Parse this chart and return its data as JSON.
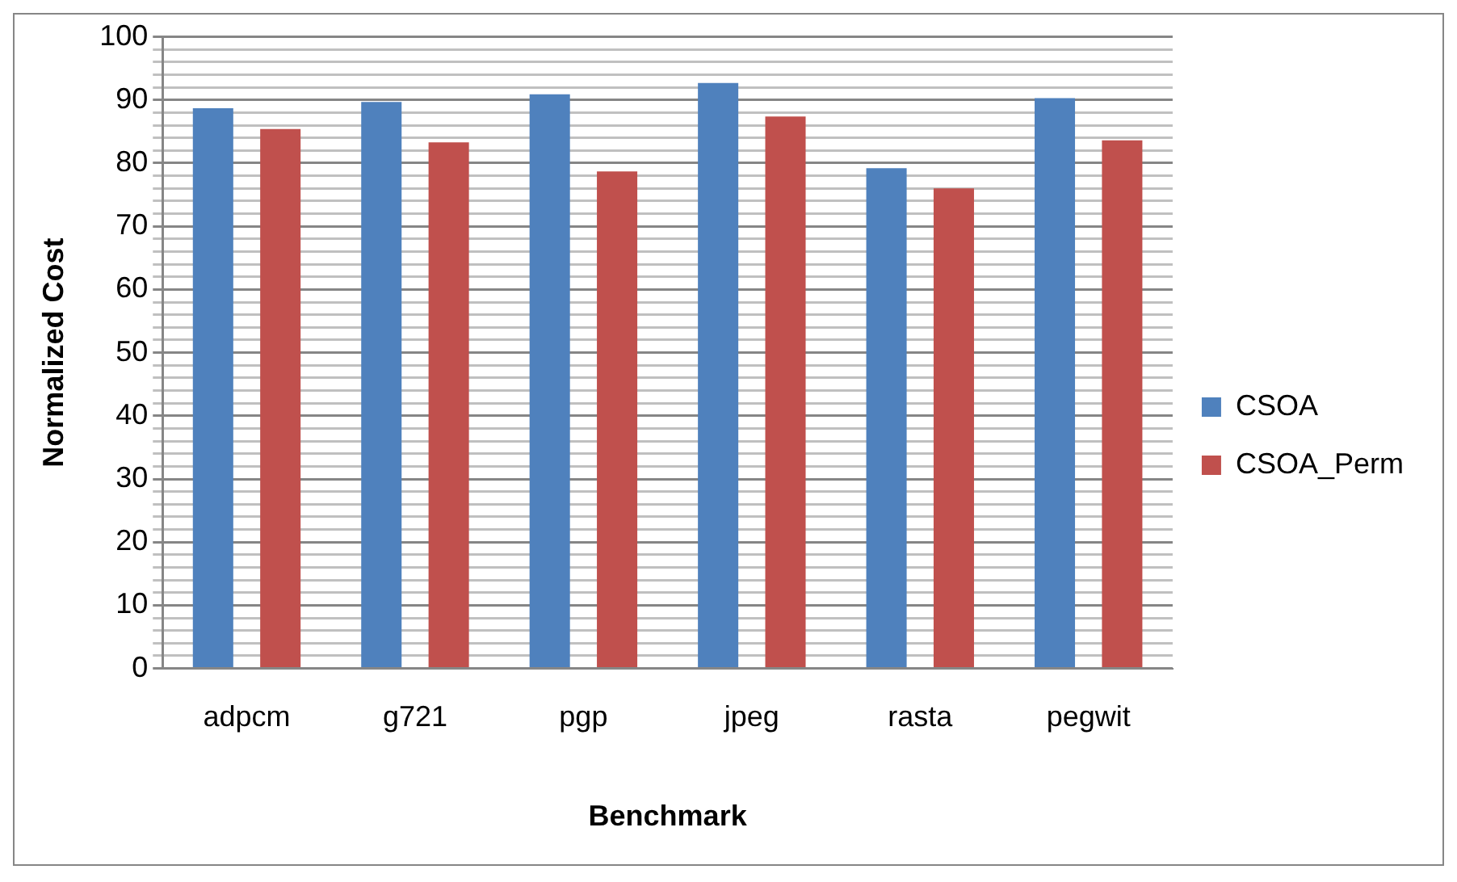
{
  "chart_data": {
    "type": "bar",
    "xlabel": "Benchmark",
    "ylabel": "Normalized Cost",
    "categories": [
      "adpcm",
      "g721",
      "pgp",
      "jpeg",
      "rasta",
      "pegwit"
    ],
    "series": [
      {
        "name": "CSOA",
        "color": "#4f81bd",
        "values": [
          88.7,
          89.7,
          90.9,
          92.7,
          79.2,
          90.3
        ]
      },
      {
        "name": "CSOA_Perm",
        "color": "#c0504d",
        "values": [
          85.4,
          83.3,
          78.7,
          87.4,
          76.0,
          83.6
        ]
      }
    ],
    "ylim": [
      0,
      100
    ],
    "yticks": [
      0,
      {
        "value": 2,
        "label": null
      },
      {
        "value": 4,
        "label": null
      },
      {
        "value": 6,
        "label": null
      },
      {
        "value": 8,
        "label": null
      },
      10,
      {
        "value": 12,
        "label": null
      },
      {
        "value": 14,
        "label": null
      },
      {
        "value": 16,
        "label": null
      },
      {
        "value": 18,
        "label": null
      },
      20,
      {
        "value": 22,
        "label": null
      },
      {
        "value": 24,
        "label": null
      },
      {
        "value": 26,
        "label": null
      },
      {
        "value": 28,
        "label": null
      },
      30,
      {
        "value": 32,
        "label": null
      },
      {
        "value": 34,
        "label": null
      },
      {
        "value": 36,
        "label": null
      },
      {
        "value": 38,
        "label": null
      },
      40,
      {
        "value": 42,
        "label": null
      },
      {
        "value": 44,
        "label": null
      },
      {
        "value": 46,
        "label": null
      },
      {
        "value": 48,
        "label": null
      },
      50,
      {
        "value": 52,
        "label": null
      },
      {
        "value": 54,
        "label": null
      },
      {
        "value": 56,
        "label": null
      },
      {
        "value": 58,
        "label": null
      },
      60,
      {
        "value": 62,
        "label": null
      },
      {
        "value": 64,
        "label": null
      },
      {
        "value": 66,
        "label": null
      },
      {
        "value": 68,
        "label": null
      },
      70,
      {
        "value": 72,
        "label": null
      },
      {
        "value": 74,
        "label": null
      },
      {
        "value": 76,
        "label": null
      },
      {
        "value": 78,
        "label": null
      },
      80,
      {
        "value": 82,
        "label": null
      },
      {
        "value": 84,
        "label": null
      },
      {
        "value": 86,
        "label": null
      },
      {
        "value": 88,
        "label": null
      },
      90,
      {
        "value": 92,
        "label": null
      },
      {
        "value": 94,
        "label": null
      },
      {
        "value": 96,
        "label": null
      },
      {
        "value": 98,
        "label": null
      },
      100
    ],
    "grid": "y",
    "legend": "right"
  }
}
